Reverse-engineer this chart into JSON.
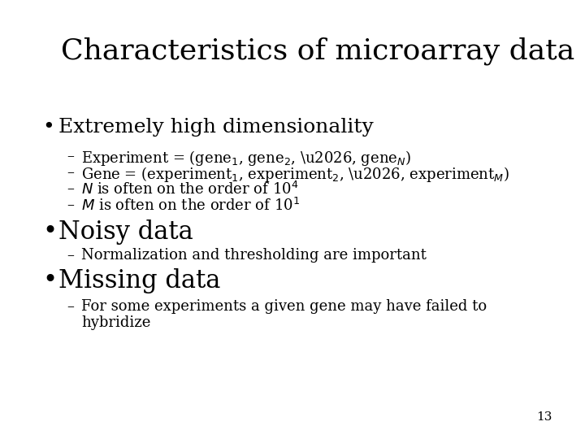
{
  "title": "Characteristics of microarray data",
  "background_color": "#ffffff",
  "text_color": "#000000",
  "title_fontsize": 26,
  "bullet1_fontsize": 18,
  "bullet2_fontsize": 22,
  "sub_fontsize": 13,
  "page_number": "13",
  "font_family": "DejaVu Serif"
}
